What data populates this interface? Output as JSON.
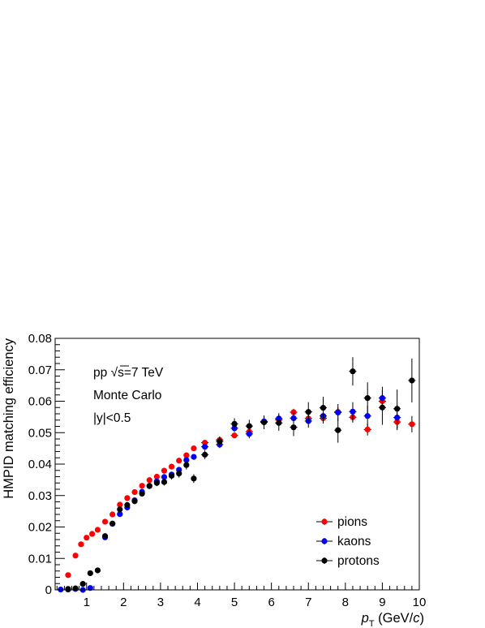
{
  "chart_data": {
    "type": "scatter",
    "xlabel_main": "p",
    "xlabel_sub": "T",
    "xlabel_unit_prefix": " (GeV/",
    "xlabel_unit_italic": "c",
    "xlabel_unit_suffix": ")",
    "ylabel": "HMPID matching efficiency",
    "xlim": [
      0.15,
      10
    ],
    "ylim": [
      0,
      0.08
    ],
    "x_ticks": [
      1,
      2,
      3,
      4,
      5,
      6,
      7,
      8,
      9,
      10
    ],
    "x_tick_labels": [
      "1",
      "2",
      "3",
      "4",
      "5",
      "6",
      "7",
      "8",
      "9",
      "10"
    ],
    "y_ticks": [
      0,
      0.01,
      0.02,
      0.03,
      0.04,
      0.05,
      0.06,
      0.07,
      0.08
    ],
    "y_tick_labels": [
      "0",
      "0.01",
      "0.02",
      "0.03",
      "0.04",
      "0.05",
      "0.06",
      "0.07",
      "0.08"
    ],
    "grid": false,
    "legend_position": "bottom-right",
    "annotations": {
      "line1_prefix": "pp ",
      "line1_sqrt": "√",
      "line1_suffix": "s=7 TeV",
      "line2": "Monte Carlo",
      "line3": "|y|<0.5"
    },
    "series": [
      {
        "name": "pions",
        "color": "#ff0000",
        "points": [
          [
            0.5,
            0.0047,
            0.05,
            0.0003
          ],
          [
            0.7,
            0.0109,
            0.05,
            0.0003
          ],
          [
            0.85,
            0.0145,
            0.05,
            0.0003
          ],
          [
            1.0,
            0.0166,
            0.05,
            0.0003
          ],
          [
            1.15,
            0.0178,
            0.05,
            0.0003
          ],
          [
            1.3,
            0.0191,
            0.05,
            0.0003
          ],
          [
            1.5,
            0.0217,
            0.05,
            0.0003
          ],
          [
            1.7,
            0.024,
            0.05,
            0.0003
          ],
          [
            1.9,
            0.0271,
            0.05,
            0.0003
          ],
          [
            2.1,
            0.0292,
            0.05,
            0.0003
          ],
          [
            2.3,
            0.0311,
            0.05,
            0.0003
          ],
          [
            2.5,
            0.0331,
            0.05,
            0.0003
          ],
          [
            2.7,
            0.0349,
            0.05,
            0.0003
          ],
          [
            2.9,
            0.036,
            0.05,
            0.0003
          ],
          [
            3.1,
            0.0379,
            0.05,
            0.0003
          ],
          [
            3.3,
            0.0392,
            0.05,
            0.0003
          ],
          [
            3.5,
            0.0411,
            0.05,
            0.0003
          ],
          [
            3.7,
            0.0428,
            0.05,
            0.0004
          ],
          [
            3.9,
            0.045,
            0.05,
            0.0004
          ],
          [
            4.2,
            0.0468,
            0.1,
            0.0004
          ],
          [
            4.6,
            0.0477,
            0.1,
            0.0005
          ],
          [
            5.0,
            0.0491,
            0.1,
            0.0006
          ],
          [
            5.4,
            0.0503,
            0.1,
            0.0007
          ],
          [
            5.8,
            0.0535,
            0.1,
            0.0008
          ],
          [
            6.2,
            0.0541,
            0.1,
            0.0009
          ],
          [
            6.6,
            0.0565,
            0.1,
            0.0011
          ],
          [
            7.0,
            0.0545,
            0.1,
            0.0012
          ],
          [
            7.4,
            0.0546,
            0.1,
            0.0013
          ],
          [
            7.8,
            0.0566,
            0.1,
            0.0015
          ],
          [
            8.2,
            0.0549,
            0.1,
            0.0017
          ],
          [
            8.6,
            0.051,
            0.1,
            0.0019
          ],
          [
            9.0,
            0.06,
            0.1,
            0.0021
          ],
          [
            9.4,
            0.0534,
            0.1,
            0.0024
          ],
          [
            9.8,
            0.0527,
            0.1,
            0.0026
          ]
        ]
      },
      {
        "name": "kaons",
        "color": "#0000ff",
        "points": [
          [
            0.3,
            0.0001,
            0.05,
            0.0002
          ],
          [
            0.5,
            0.0001,
            0.05,
            0.0002
          ],
          [
            0.7,
            0.0003,
            0.05,
            0.0002
          ],
          [
            0.9,
            0.0,
            0.05,
            0.0002
          ],
          [
            1.1,
            0.0006,
            0.05,
            0.0003
          ],
          [
            1.5,
            0.0167,
            0.05,
            0.0005
          ],
          [
            1.7,
            0.021,
            0.05,
            0.0005
          ],
          [
            1.9,
            0.0241,
            0.05,
            0.0005
          ],
          [
            2.1,
            0.0262,
            0.05,
            0.0005
          ],
          [
            2.3,
            0.0285,
            0.05,
            0.0005
          ],
          [
            2.5,
            0.0312,
            0.05,
            0.0005
          ],
          [
            2.7,
            0.033,
            0.05,
            0.0006
          ],
          [
            2.9,
            0.0345,
            0.05,
            0.0006
          ],
          [
            3.1,
            0.0359,
            0.05,
            0.0006
          ],
          [
            3.3,
            0.0367,
            0.05,
            0.0007
          ],
          [
            3.5,
            0.0382,
            0.05,
            0.0008
          ],
          [
            3.7,
            0.0413,
            0.05,
            0.0009
          ],
          [
            3.9,
            0.0423,
            0.05,
            0.0009
          ],
          [
            4.2,
            0.0455,
            0.1,
            0.001
          ],
          [
            4.6,
            0.0462,
            0.1,
            0.0011
          ],
          [
            5.0,
            0.0514,
            0.1,
            0.0012
          ],
          [
            5.4,
            0.0496,
            0.1,
            0.0014
          ],
          [
            5.8,
            0.0536,
            0.1,
            0.0015
          ],
          [
            6.2,
            0.0545,
            0.1,
            0.0017
          ],
          [
            6.6,
            0.0546,
            0.1,
            0.0019
          ],
          [
            7.0,
            0.0537,
            0.1,
            0.0021
          ],
          [
            7.4,
            0.0553,
            0.1,
            0.0024
          ],
          [
            7.8,
            0.0564,
            0.1,
            0.0027
          ],
          [
            8.2,
            0.0567,
            0.1,
            0.003
          ],
          [
            8.6,
            0.0553,
            0.1,
            0.0033
          ],
          [
            9.0,
            0.061,
            0.1,
            0.0036
          ],
          [
            9.4,
            0.0548,
            0.1,
            0.004
          ]
        ]
      },
      {
        "name": "protons",
        "color": "#000000",
        "points": [
          [
            0.5,
            0.0003,
            0.05,
            0.0002
          ],
          [
            0.7,
            0.0005,
            0.05,
            0.0002
          ],
          [
            0.9,
            0.0019,
            0.05,
            0.0004
          ],
          [
            1.1,
            0.0053,
            0.05,
            0.0005
          ],
          [
            1.3,
            0.0062,
            0.05,
            0.0006
          ],
          [
            1.5,
            0.0171,
            0.05,
            0.0008
          ],
          [
            1.7,
            0.0211,
            0.05,
            0.0008
          ],
          [
            1.9,
            0.0256,
            0.05,
            0.0008
          ],
          [
            2.1,
            0.027,
            0.05,
            0.0009
          ],
          [
            2.3,
            0.0282,
            0.05,
            0.0009
          ],
          [
            2.5,
            0.0306,
            0.05,
            0.0009
          ],
          [
            2.7,
            0.0331,
            0.05,
            0.001
          ],
          [
            2.9,
            0.034,
            0.05,
            0.001
          ],
          [
            3.1,
            0.0343,
            0.05,
            0.0011
          ],
          [
            3.3,
            0.0363,
            0.05,
            0.0012
          ],
          [
            3.5,
            0.037,
            0.05,
            0.0013
          ],
          [
            3.7,
            0.0397,
            0.05,
            0.0014
          ],
          [
            3.9,
            0.0354,
            0.05,
            0.0014
          ],
          [
            4.2,
            0.043,
            0.1,
            0.0014
          ],
          [
            4.6,
            0.0472,
            0.1,
            0.0016
          ],
          [
            5.0,
            0.0528,
            0.1,
            0.0018
          ],
          [
            5.4,
            0.0521,
            0.1,
            0.002
          ],
          [
            5.8,
            0.0533,
            0.1,
            0.0022
          ],
          [
            6.2,
            0.0531,
            0.1,
            0.0025
          ],
          [
            6.6,
            0.0517,
            0.1,
            0.0028
          ],
          [
            7.0,
            0.0566,
            0.1,
            0.0031
          ],
          [
            7.4,
            0.0579,
            0.1,
            0.0035
          ],
          [
            7.8,
            0.0508,
            0.1,
            0.004
          ],
          [
            8.2,
            0.0695,
            0.1,
            0.0045
          ],
          [
            8.6,
            0.061,
            0.1,
            0.005
          ],
          [
            9.0,
            0.058,
            0.1,
            0.0055
          ],
          [
            9.4,
            0.0576,
            0.1,
            0.0061
          ],
          [
            9.8,
            0.0666,
            0.1,
            0.007
          ]
        ]
      }
    ]
  }
}
